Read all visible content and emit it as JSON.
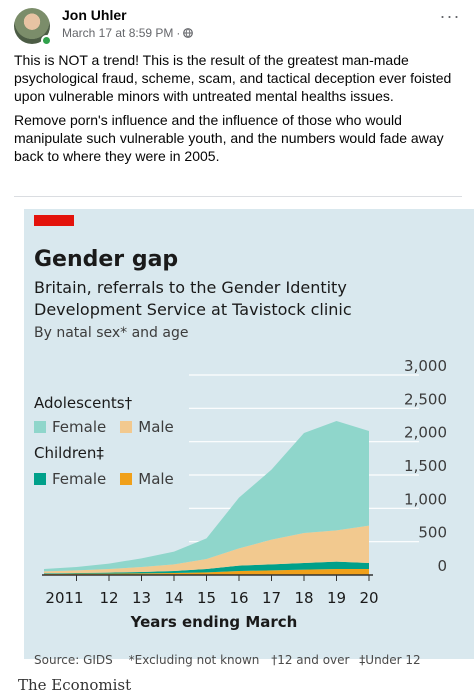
{
  "post": {
    "author": "Jon Uhler",
    "timestamp": "March 17 at 8:59 PM",
    "separator": "·",
    "paragraphs": [
      "This is NOT a trend! This is the result of the greatest man-made psychological fraud, scheme, scam, and tactical deception ever foisted upon vulnerable minors with untreated mental healths issues.",
      "Remove porn's influence and the influence of those who would manipulate such vulnerable youth, and the numbers would fade away back to where they were in 2005."
    ],
    "more_label": "···"
  },
  "colors": {
    "adolescent_female": "#8fd6cb",
    "adolescent_male": "#f2c98f",
    "child_female": "#00a08a",
    "child_male": "#f0a01a",
    "brand_red": "#e3120b",
    "panel_bg": "#d9e8ee",
    "online_green": "#31a24c"
  },
  "icons": {
    "globe": "globe-icon",
    "more": "more-dots-icon"
  },
  "chart_data": {
    "type": "area",
    "stacked": true,
    "title": "Gender gap",
    "subtitle": "Britain, referrals to the Gender Identity Development Service at Tavistock clinic",
    "note": "By natal sex* and age",
    "xlabel": "Years ending March",
    "ylabel": "",
    "ylim": [
      0,
      3000
    ],
    "yticks": [
      0,
      500,
      1000,
      1500,
      2000,
      2500,
      3000
    ],
    "x_tick_labels": [
      "2011",
      "12",
      "13",
      "14",
      "15",
      "16",
      "17",
      "18",
      "19",
      "20"
    ],
    "x": [
      2010,
      2011,
      2012,
      2013,
      2014,
      2015,
      2016,
      2017,
      2018,
      2019,
      2020
    ],
    "legend": {
      "adolescents_label": "Adolescents†",
      "children_label": "Children‡",
      "female_label": "Female",
      "male_label": "Male"
    },
    "series": [
      {
        "name": "Children Male",
        "color_key": "child_male",
        "values": [
          15,
          20,
          20,
          25,
          30,
          40,
          60,
          70,
          80,
          90,
          90
        ]
      },
      {
        "name": "Children Female",
        "color_key": "child_female",
        "values": [
          10,
          10,
          15,
          20,
          30,
          50,
          80,
          90,
          100,
          110,
          90
        ]
      },
      {
        "name": "Adolescents Male",
        "color_key": "adolescent_male",
        "values": [
          30,
          40,
          55,
          75,
          100,
          150,
          260,
          370,
          450,
          470,
          560
        ]
      },
      {
        "name": "Adolescents Female",
        "color_key": "adolescent_female",
        "values": [
          35,
          50,
          80,
          130,
          190,
          310,
          760,
          1050,
          1500,
          1640,
          1420
        ]
      }
    ],
    "source": "Source: GIDS",
    "footnotes": [
      "*Excluding not known",
      "†12 and over",
      "‡Under 12"
    ]
  },
  "footer": {
    "brand": "The Economist"
  }
}
